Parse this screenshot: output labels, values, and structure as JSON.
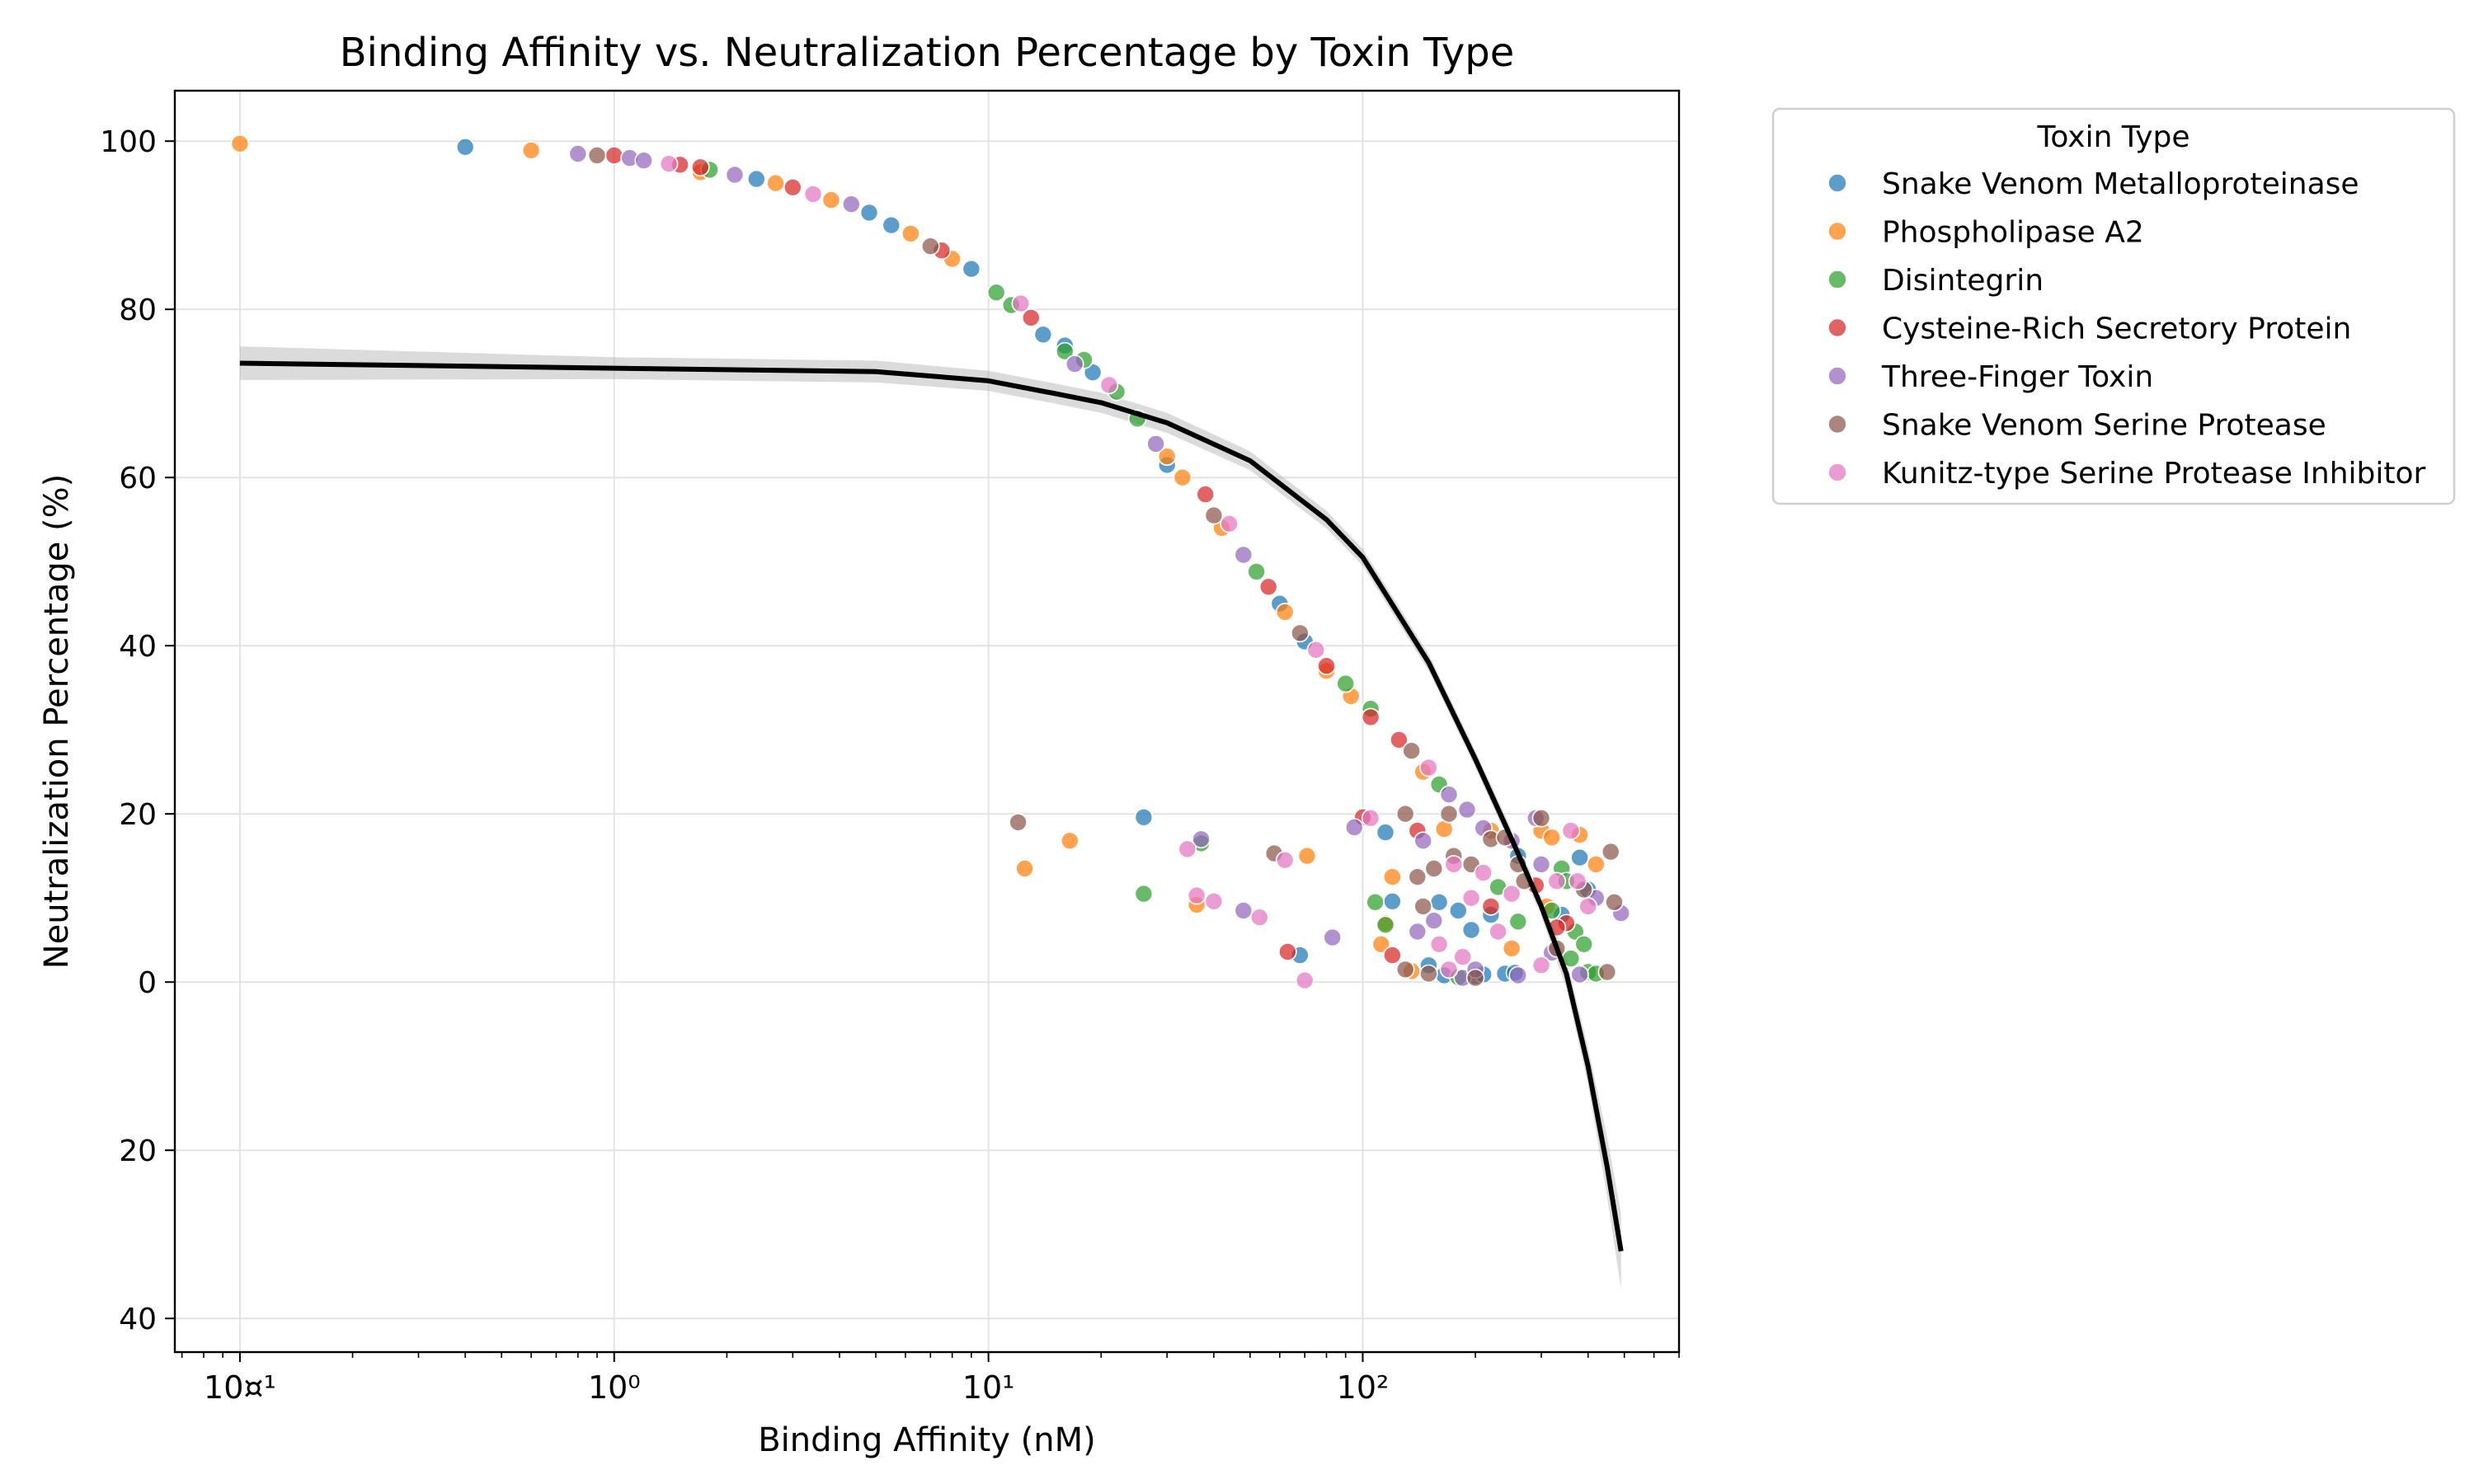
{
  "chart_data": {
    "type": "scatter",
    "title": "Binding Affinity vs. Neutralization Percentage by Toxin Type",
    "xlabel": "Binding Affinity (nM)",
    "ylabel": "Neutralization Percentage (%)",
    "x_scale": "log",
    "xlim": [
      0.067,
      700
    ],
    "ylim": [
      -44,
      106
    ],
    "grid": true,
    "x_ticks": [
      {
        "value": 0.1,
        "label": "10¤¹"
      },
      {
        "value": 1,
        "label": "10⁰"
      },
      {
        "value": 10,
        "label": "10¹"
      },
      {
        "value": 100,
        "label": "10²"
      }
    ],
    "y_ticks": [
      {
        "value": 100,
        "label": "100"
      },
      {
        "value": 80,
        "label": "80"
      },
      {
        "value": 60,
        "label": "60"
      },
      {
        "value": 40,
        "label": "40"
      },
      {
        "value": 20,
        "label": "20"
      },
      {
        "value": 0,
        "label": "0"
      },
      {
        "value": -20,
        "label": "\u001a20"
      },
      {
        "value": -40,
        "label": "\u001a40"
      }
    ],
    "legend": {
      "title": "Toxin Type",
      "placement": "outside right, top",
      "entries": [
        {
          "name": "Snake Venom Metalloproteinase",
          "color": "#1f77b4"
        },
        {
          "name": "Phospholipase A2",
          "color": "#ff7f0e"
        },
        {
          "name": "Disintegrin",
          "color": "#2ca02c"
        },
        {
          "name": "Cysteine-Rich Secretory Protein",
          "color": "#d62728"
        },
        {
          "name": "Three-Finger Toxin",
          "color": "#9467bd"
        },
        {
          "name": "Snake Venom Serine Protease",
          "color": "#8c564b"
        },
        {
          "name": "Kunitz-type Serine Protease Inhibitor",
          "color": "#e377c2"
        }
      ]
    },
    "series": [
      {
        "name": "Snake Venom Metalloproteinase",
        "color": "#1f77b4",
        "points": [
          [
            0.4,
            99.3
          ],
          [
            2.4,
            95.5
          ],
          [
            4.8,
            91.5
          ],
          [
            5.5,
            90
          ],
          [
            9,
            84.8
          ],
          [
            14,
            77
          ],
          [
            16,
            75.7
          ],
          [
            19,
            72.5
          ],
          [
            30,
            61.5
          ],
          [
            60,
            45
          ],
          [
            70,
            40.5
          ],
          [
            26,
            19.6
          ],
          [
            68,
            3.2
          ],
          [
            115,
            17.8
          ],
          [
            120,
            9.6
          ],
          [
            150,
            2
          ],
          [
            160,
            9.5
          ],
          [
            165,
            0.8
          ],
          [
            180,
            8.5
          ],
          [
            195,
            6.2
          ],
          [
            200,
            0.7
          ],
          [
            210,
            0.9
          ],
          [
            220,
            8
          ],
          [
            240,
            1
          ],
          [
            255,
            1.1
          ],
          [
            260,
            15
          ],
          [
            340,
            8
          ],
          [
            380,
            14.8
          ],
          [
            400,
            11
          ]
        ]
      },
      {
        "name": "Phospholipase A2",
        "color": "#ff7f0e",
        "points": [
          [
            0.1,
            99.7
          ],
          [
            0.6,
            98.9
          ],
          [
            1.7,
            96.3
          ],
          [
            2.7,
            95
          ],
          [
            3.8,
            93
          ],
          [
            6.2,
            89
          ],
          [
            8,
            86
          ],
          [
            30,
            62.5
          ],
          [
            33,
            60
          ],
          [
            42,
            54
          ],
          [
            62,
            44
          ],
          [
            80,
            37
          ],
          [
            93,
            34
          ],
          [
            145,
            25
          ],
          [
            16.5,
            16.8
          ],
          [
            12.5,
            13.5
          ],
          [
            36,
            9.2
          ],
          [
            71,
            15
          ],
          [
            112,
            4.5
          ],
          [
            115,
            7
          ],
          [
            135,
            1.3
          ],
          [
            165,
            18.2
          ],
          [
            220,
            18
          ],
          [
            250,
            4
          ],
          [
            300,
            18
          ],
          [
            320,
            17.2
          ],
          [
            380,
            17.5
          ],
          [
            420,
            14
          ],
          [
            120,
            12.5
          ],
          [
            310,
            9
          ]
        ]
      },
      {
        "name": "Disintegrin",
        "color": "#2ca02c",
        "points": [
          [
            1.8,
            96.6
          ],
          [
            10.5,
            82
          ],
          [
            11.5,
            80.5
          ],
          [
            16,
            75
          ],
          [
            18,
            74
          ],
          [
            22,
            70.2
          ],
          [
            25,
            67
          ],
          [
            52,
            48.8
          ],
          [
            90,
            35.5
          ],
          [
            105,
            32.5
          ],
          [
            160,
            23.5
          ],
          [
            26,
            10.5
          ],
          [
            37,
            16.5
          ],
          [
            108,
            9.5
          ],
          [
            115,
            6.8
          ],
          [
            230,
            11.3
          ],
          [
            260,
            7.2
          ],
          [
            320,
            8.5
          ],
          [
            340,
            13.5
          ],
          [
            350,
            12
          ],
          [
            360,
            2.8
          ],
          [
            370,
            6
          ],
          [
            390,
            4.5
          ],
          [
            400,
            1.2
          ],
          [
            420,
            1
          ],
          [
            180,
            0.6
          ]
        ]
      },
      {
        "name": "Cysteine-Rich Secretory Protein",
        "color": "#d62728",
        "points": [
          [
            1.0,
            98.3
          ],
          [
            1.5,
            97.2
          ],
          [
            1.7,
            96.9
          ],
          [
            3.0,
            94.5
          ],
          [
            7.5,
            87
          ],
          [
            13,
            79
          ],
          [
            38,
            58
          ],
          [
            56,
            47
          ],
          [
            80,
            37.6
          ],
          [
            105,
            31.5
          ],
          [
            125,
            28.8
          ],
          [
            100,
            19.6
          ],
          [
            63,
            3.6
          ],
          [
            120,
            3.2
          ],
          [
            220,
            9
          ],
          [
            350,
            7
          ],
          [
            140,
            18
          ],
          [
            290,
            11.5
          ],
          [
            330,
            6.5
          ]
        ]
      },
      {
        "name": "Three-Finger Toxin",
        "color": "#9467bd",
        "points": [
          [
            0.8,
            98.5
          ],
          [
            1.1,
            98
          ],
          [
            1.2,
            97.7
          ],
          [
            2.1,
            96
          ],
          [
            4.3,
            92.5
          ],
          [
            17,
            73.5
          ],
          [
            28,
            64
          ],
          [
            48,
            50.8
          ],
          [
            95,
            18.4
          ],
          [
            145,
            16.8
          ],
          [
            155,
            7.3
          ],
          [
            170,
            22.3
          ],
          [
            190,
            20.5
          ],
          [
            210,
            18.3
          ],
          [
            250,
            16.8
          ],
          [
            290,
            19.5
          ],
          [
            300,
            14
          ],
          [
            37,
            17
          ],
          [
            48,
            8.5
          ],
          [
            83,
            5.3
          ],
          [
            140,
            6
          ],
          [
            185,
            0.5
          ],
          [
            200,
            1.5
          ],
          [
            260,
            0.8
          ],
          [
            320,
            3.5
          ],
          [
            420,
            10
          ],
          [
            490,
            8.2
          ],
          [
            380,
            0.9
          ]
        ]
      },
      {
        "name": "Snake Venom Serine Protease",
        "color": "#8c564b",
        "points": [
          [
            0.9,
            98.3
          ],
          [
            7,
            87.5
          ],
          [
            40,
            55.5
          ],
          [
            68,
            41.5
          ],
          [
            135,
            27.5
          ],
          [
            12,
            19
          ],
          [
            58,
            15.3
          ],
          [
            130,
            20
          ],
          [
            140,
            12.5
          ],
          [
            145,
            9
          ],
          [
            150,
            1
          ],
          [
            155,
            13.5
          ],
          [
            175,
            15
          ],
          [
            195,
            14
          ],
          [
            200,
            0.5
          ],
          [
            220,
            17
          ],
          [
            260,
            14
          ],
          [
            270,
            12
          ],
          [
            300,
            19.5
          ],
          [
            330,
            4
          ],
          [
            390,
            11
          ],
          [
            450,
            1.2
          ],
          [
            460,
            15.5
          ],
          [
            470,
            9.5
          ],
          [
            170,
            20
          ],
          [
            130,
            1.5
          ],
          [
            240,
            17.2
          ]
        ]
      },
      {
        "name": "Kunitz-type Serine Protease Inhibitor",
        "color": "#e377c2",
        "points": [
          [
            1.4,
            97.3
          ],
          [
            3.4,
            93.7
          ],
          [
            12.2,
            80.7
          ],
          [
            21,
            71
          ],
          [
            44,
            54.5
          ],
          [
            75,
            39.5
          ],
          [
            150,
            25.5
          ],
          [
            34,
            15.8
          ],
          [
            36,
            10.3
          ],
          [
            40,
            9.6
          ],
          [
            53,
            7.7
          ],
          [
            62,
            14.5
          ],
          [
            70,
            0.2
          ],
          [
            105,
            19.5
          ],
          [
            160,
            4.5
          ],
          [
            175,
            14
          ],
          [
            185,
            3
          ],
          [
            195,
            10
          ],
          [
            210,
            13
          ],
          [
            230,
            6
          ],
          [
            300,
            2
          ],
          [
            330,
            12
          ],
          [
            360,
            18
          ],
          [
            375,
            12
          ],
          [
            400,
            9
          ],
          [
            170,
            1.5
          ],
          [
            250,
            10.5
          ]
        ]
      }
    ],
    "trend_line": {
      "color": "#000000",
      "band_color": "#b0b0b0",
      "points": [
        [
          0.1,
          73.6
        ],
        [
          1,
          73
        ],
        [
          5,
          72.6
        ],
        [
          10,
          71.5
        ],
        [
          15,
          70
        ],
        [
          20,
          68.9
        ],
        [
          30,
          66.5
        ],
        [
          50,
          62
        ],
        [
          80,
          55
        ],
        [
          100,
          50.5
        ],
        [
          150,
          38
        ],
        [
          200,
          26.5
        ],
        [
          250,
          17
        ],
        [
          300,
          9
        ],
        [
          350,
          1
        ],
        [
          400,
          -10
        ],
        [
          450,
          -22
        ],
        [
          490,
          -32
        ]
      ],
      "band": [
        [
          0.1,
          2
        ],
        [
          1,
          1.3
        ],
        [
          5,
          1.3
        ],
        [
          10,
          1.2
        ],
        [
          30,
          1.2
        ],
        [
          100,
          1
        ],
        [
          200,
          1
        ],
        [
          300,
          1.2
        ],
        [
          400,
          2.2
        ],
        [
          490,
          4.5
        ]
      ]
    }
  }
}
